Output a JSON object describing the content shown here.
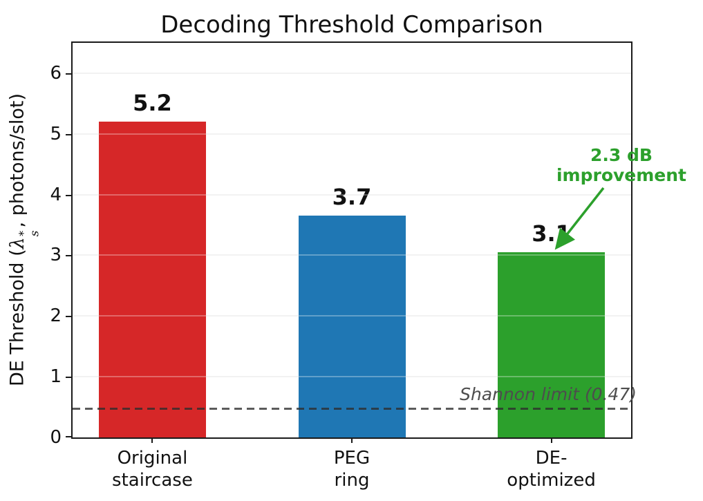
{
  "figure": {
    "title": "Decoding Threshold Comparison",
    "ylabel_parts": {
      "prefix": "DE Threshold (",
      "lambda": "λ",
      "sup": "*",
      "sub": "s",
      "suffix": ", photons/slot)"
    }
  },
  "chart_data": {
    "type": "bar",
    "title": "Decoding Threshold Comparison",
    "xlabel": "",
    "ylabel": "DE Threshold (λs*, photons/slot)",
    "categories": [
      "Original\nstaircase",
      "PEG\nring",
      "DE-\noptimized"
    ],
    "values": [
      5.2,
      3.65,
      3.05
    ],
    "bar_labels": [
      "5.2",
      "3.7",
      "3.1"
    ],
    "bar_colors": [
      "#d62728",
      "#1f77b4",
      "#2ca02c"
    ],
    "bar_names": [
      "original-staircase",
      "peg-ring",
      "de-optimized"
    ],
    "yticks": [
      0,
      1,
      2,
      3,
      4,
      5,
      6
    ],
    "ylim": [
      0,
      6.5
    ],
    "grid": "horizontal",
    "legend": "none",
    "reference_line": {
      "value": 0.47,
      "label": "Shannon limit (0.47)",
      "style": "dashed",
      "color": "#555555"
    },
    "annotation": {
      "lines": [
        "2.3 dB",
        "improvement"
      ],
      "color": "#2ca02c",
      "points_to": "DE-optimized bar top"
    }
  }
}
